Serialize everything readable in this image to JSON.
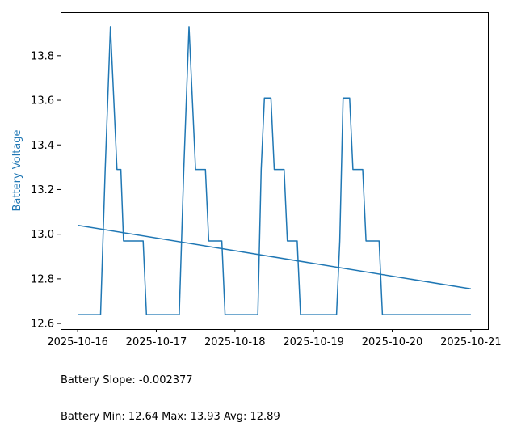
{
  "chart_data": {
    "type": "line",
    "title": "",
    "xlabel": "",
    "ylabel": "Battery Voltage",
    "x_ticks": [
      "2025-10-16",
      "2025-10-17",
      "2025-10-18",
      "2025-10-19",
      "2025-10-20",
      "2025-10-21"
    ],
    "y_ticks": [
      "12.6",
      "12.8",
      "13.0",
      "13.2",
      "13.4",
      "13.6",
      "13.8"
    ],
    "xlim": [
      "2025-10-15T18:48",
      "2025-10-21T05:12"
    ],
    "ylim": [
      12.575,
      13.995
    ],
    "colors": {
      "series": "#1f77b4",
      "ylabel": "#1f77b4"
    },
    "grid": false,
    "legend": "none",
    "series": [
      {
        "name": "",
        "points": [
          [
            "2025-10-16T00:00",
            12.64
          ],
          [
            "2025-10-16T07:00",
            12.64
          ],
          [
            "2025-10-16T08:24",
            13.29
          ],
          [
            "2025-10-16T10:00",
            13.93
          ],
          [
            "2025-10-16T12:00",
            13.29
          ],
          [
            "2025-10-16T13:12",
            13.29
          ],
          [
            "2025-10-16T14:00",
            12.97
          ],
          [
            "2025-10-16T20:00",
            12.97
          ],
          [
            "2025-10-16T21:00",
            12.64
          ],
          [
            "2025-10-17T07:00",
            12.64
          ],
          [
            "2025-10-17T08:24",
            13.29
          ],
          [
            "2025-10-17T10:00",
            13.93
          ],
          [
            "2025-10-17T12:00",
            13.29
          ],
          [
            "2025-10-17T15:00",
            13.29
          ],
          [
            "2025-10-17T16:00",
            12.97
          ],
          [
            "2025-10-17T20:00",
            12.97
          ],
          [
            "2025-10-17T21:00",
            12.64
          ],
          [
            "2025-10-18T07:00",
            12.64
          ],
          [
            "2025-10-18T08:00",
            13.29
          ],
          [
            "2025-10-18T09:00",
            13.61
          ],
          [
            "2025-10-18T11:00",
            13.61
          ],
          [
            "2025-10-18T12:00",
            13.29
          ],
          [
            "2025-10-18T15:00",
            13.29
          ],
          [
            "2025-10-18T16:00",
            12.97
          ],
          [
            "2025-10-18T19:00",
            12.97
          ],
          [
            "2025-10-18T20:00",
            12.64
          ],
          [
            "2025-10-19T07:00",
            12.64
          ],
          [
            "2025-10-19T08:00",
            12.97
          ],
          [
            "2025-10-19T09:00",
            13.61
          ],
          [
            "2025-10-19T11:00",
            13.61
          ],
          [
            "2025-10-19T12:00",
            13.29
          ],
          [
            "2025-10-19T15:00",
            13.29
          ],
          [
            "2025-10-19T16:00",
            12.97
          ],
          [
            "2025-10-19T20:00",
            12.97
          ],
          [
            "2025-10-19T21:00",
            12.64
          ],
          [
            "2025-10-21T00:00",
            12.64
          ]
        ]
      },
      {
        "name": "",
        "points": [
          [
            "2025-10-16T00:00",
            13.04
          ],
          [
            "2025-10-21T00:00",
            12.755
          ]
        ]
      }
    ]
  },
  "stats": {
    "line1": "Battery Slope: -0.002377",
    "line2": "Battery Min: 12.64 Max: 13.93 Avg: 12.89"
  }
}
